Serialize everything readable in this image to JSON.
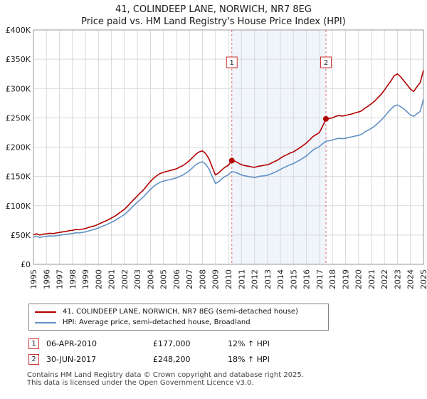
{
  "title": "41, COLINDEEP LANE, NORWICH, NR7 8EG",
  "subtitle": "Price paid vs. HM Land Registry's House Price Index (HPI)",
  "chart_data": {
    "type": "line",
    "xlabel": "",
    "ylabel": "",
    "xlim": [
      1995,
      2025
    ],
    "ylim": [
      0,
      400000
    ],
    "grid": true,
    "legend_position": "bottom",
    "x_ticks": [
      1995,
      1996,
      1997,
      1998,
      1999,
      2000,
      2001,
      2002,
      2003,
      2004,
      2005,
      2006,
      2007,
      2008,
      2009,
      2010,
      2011,
      2012,
      2013,
      2014,
      2015,
      2016,
      2017,
      2018,
      2019,
      2020,
      2021,
      2022,
      2023,
      2024,
      2025
    ],
    "y_ticks": [
      {
        "value": 0,
        "label": "£0"
      },
      {
        "value": 50000,
        "label": "£50K"
      },
      {
        "value": 100000,
        "label": "£100K"
      },
      {
        "value": 150000,
        "label": "£150K"
      },
      {
        "value": 200000,
        "label": "£200K"
      },
      {
        "value": 250000,
        "label": "£250K"
      },
      {
        "value": 300000,
        "label": "£300K"
      },
      {
        "value": 350000,
        "label": "£350K"
      },
      {
        "value": 400000,
        "label": "£400K"
      }
    ],
    "shaded_region": {
      "from": 2010.26,
      "to": 2017.5,
      "color": "#dde7f6",
      "opacity": 0.45,
      "boundary_color": "#e07070"
    },
    "sale_markers": [
      {
        "num": "1",
        "x": 2010.26,
        "y": 177000
      },
      {
        "num": "2",
        "x": 2017.5,
        "y": 248200
      }
    ],
    "series": [
      {
        "name": "41, COLINDEEP LANE, NORWICH, NR7 8EG (semi-detached house)",
        "color": "#b30000",
        "points": [
          [
            1995.0,
            50500
          ],
          [
            1995.25,
            52000
          ],
          [
            1995.5,
            50000
          ],
          [
            1995.75,
            51500
          ],
          [
            1996.0,
            52000
          ],
          [
            1996.25,
            53000
          ],
          [
            1996.5,
            52500
          ],
          [
            1996.75,
            53500
          ],
          [
            1997.0,
            54500
          ],
          [
            1997.25,
            55500
          ],
          [
            1997.5,
            56000
          ],
          [
            1997.75,
            57500
          ],
          [
            1998.0,
            58000
          ],
          [
            1998.25,
            59500
          ],
          [
            1998.5,
            59000
          ],
          [
            1998.75,
            60000
          ],
          [
            1999.0,
            61000
          ],
          [
            1999.25,
            63000
          ],
          [
            1999.5,
            64500
          ],
          [
            1999.75,
            66000
          ],
          [
            2000.0,
            68500
          ],
          [
            2000.25,
            71000
          ],
          [
            2000.5,
            73500
          ],
          [
            2000.75,
            76000
          ],
          [
            2001.0,
            79000
          ],
          [
            2001.25,
            82000
          ],
          [
            2001.5,
            86000
          ],
          [
            2001.75,
            90000
          ],
          [
            2002.0,
            94000
          ],
          [
            2002.25,
            99500
          ],
          [
            2002.5,
            105500
          ],
          [
            2002.75,
            111500
          ],
          [
            2003.0,
            117000
          ],
          [
            2003.25,
            122500
          ],
          [
            2003.5,
            128000
          ],
          [
            2003.75,
            135000
          ],
          [
            2004.0,
            141500
          ],
          [
            2004.25,
            147000
          ],
          [
            2004.5,
            151500
          ],
          [
            2004.75,
            155000
          ],
          [
            2005.0,
            157000
          ],
          [
            2005.25,
            158500
          ],
          [
            2005.5,
            160000
          ],
          [
            2005.75,
            161500
          ],
          [
            2006.0,
            163000
          ],
          [
            2006.25,
            166000
          ],
          [
            2006.5,
            168500
          ],
          [
            2006.75,
            172500
          ],
          [
            2007.0,
            177000
          ],
          [
            2007.25,
            182500
          ],
          [
            2007.5,
            188000
          ],
          [
            2007.75,
            192000
          ],
          [
            2008.0,
            193500
          ],
          [
            2008.25,
            189000
          ],
          [
            2008.5,
            180000
          ],
          [
            2008.75,
            166000
          ],
          [
            2009.0,
            152500
          ],
          [
            2009.25,
            156000
          ],
          [
            2009.5,
            161500
          ],
          [
            2009.75,
            166000
          ],
          [
            2010.0,
            169000
          ],
          [
            2010.26,
            177000
          ],
          [
            2010.5,
            176000
          ],
          [
            2010.75,
            173000
          ],
          [
            2011.0,
            170000
          ],
          [
            2011.25,
            168500
          ],
          [
            2011.5,
            167500
          ],
          [
            2011.75,
            166500
          ],
          [
            2012.0,
            165500
          ],
          [
            2012.25,
            167000
          ],
          [
            2012.5,
            168000
          ],
          [
            2012.75,
            169000
          ],
          [
            2013.0,
            170000
          ],
          [
            2013.25,
            172000
          ],
          [
            2013.5,
            175000
          ],
          [
            2013.75,
            177500
          ],
          [
            2014.0,
            181000
          ],
          [
            2014.25,
            184500
          ],
          [
            2014.5,
            187000
          ],
          [
            2014.75,
            190000
          ],
          [
            2015.0,
            192000
          ],
          [
            2015.25,
            195500
          ],
          [
            2015.5,
            199000
          ],
          [
            2015.75,
            203000
          ],
          [
            2016.0,
            207000
          ],
          [
            2016.25,
            212500
          ],
          [
            2016.5,
            218000
          ],
          [
            2016.75,
            221500
          ],
          [
            2017.0,
            225000
          ],
          [
            2017.25,
            236000
          ],
          [
            2017.5,
            248200
          ],
          [
            2017.75,
            249000
          ],
          [
            2018.0,
            250000
          ],
          [
            2018.25,
            252500
          ],
          [
            2018.5,
            254000
          ],
          [
            2018.75,
            253000
          ],
          [
            2019.0,
            254000
          ],
          [
            2019.25,
            255500
          ],
          [
            2019.5,
            256500
          ],
          [
            2019.75,
            258500
          ],
          [
            2020.0,
            260000
          ],
          [
            2020.25,
            262000
          ],
          [
            2020.5,
            266500
          ],
          [
            2020.75,
            270000
          ],
          [
            2021.0,
            274000
          ],
          [
            2021.25,
            278500
          ],
          [
            2021.5,
            284500
          ],
          [
            2021.75,
            290000
          ],
          [
            2022.0,
            297500
          ],
          [
            2022.25,
            305500
          ],
          [
            2022.5,
            313000
          ],
          [
            2022.75,
            322000
          ],
          [
            2023.0,
            325000
          ],
          [
            2023.25,
            320000
          ],
          [
            2023.5,
            313000
          ],
          [
            2023.75,
            306000
          ],
          [
            2024.0,
            299000
          ],
          [
            2024.25,
            295000
          ],
          [
            2024.5,
            303000
          ],
          [
            2024.75,
            310000
          ],
          [
            2025.0,
            331000
          ]
        ]
      },
      {
        "name": "HPI: Average price, semi-detached house, Broadland",
        "color": "#6090c5",
        "points": [
          [
            1995.0,
            46500
          ],
          [
            1995.25,
            47500
          ],
          [
            1995.5,
            46000
          ],
          [
            1995.75,
            47000
          ],
          [
            1996.0,
            47500
          ],
          [
            1996.25,
            48500
          ],
          [
            1996.5,
            48000
          ],
          [
            1996.75,
            49000
          ],
          [
            1997.0,
            49500
          ],
          [
            1997.25,
            50500
          ],
          [
            1997.5,
            51000
          ],
          [
            1997.75,
            52000
          ],
          [
            1998.0,
            52500
          ],
          [
            1998.25,
            54000
          ],
          [
            1998.5,
            53500
          ],
          [
            1998.75,
            54500
          ],
          [
            1999.0,
            55500
          ],
          [
            1999.25,
            57000
          ],
          [
            1999.5,
            58500
          ],
          [
            1999.75,
            60000
          ],
          [
            2000.0,
            62000
          ],
          [
            2000.25,
            64500
          ],
          [
            2000.5,
            66500
          ],
          [
            2000.75,
            69000
          ],
          [
            2001.0,
            71500
          ],
          [
            2001.25,
            74500
          ],
          [
            2001.5,
            78000
          ],
          [
            2001.75,
            81500
          ],
          [
            2002.0,
            85000
          ],
          [
            2002.25,
            90000
          ],
          [
            2002.5,
            95500
          ],
          [
            2002.75,
            101000
          ],
          [
            2003.0,
            106000
          ],
          [
            2003.25,
            111000
          ],
          [
            2003.5,
            116000
          ],
          [
            2003.75,
            122000
          ],
          [
            2004.0,
            128000
          ],
          [
            2004.25,
            133000
          ],
          [
            2004.5,
            137000
          ],
          [
            2004.75,
            140000
          ],
          [
            2005.0,
            142000
          ],
          [
            2005.25,
            143500
          ],
          [
            2005.5,
            144500
          ],
          [
            2005.75,
            146000
          ],
          [
            2006.0,
            147500
          ],
          [
            2006.25,
            150000
          ],
          [
            2006.5,
            152500
          ],
          [
            2006.75,
            156000
          ],
          [
            2007.0,
            160000
          ],
          [
            2007.25,
            165000
          ],
          [
            2007.5,
            170000
          ],
          [
            2007.75,
            173500
          ],
          [
            2008.0,
            175000
          ],
          [
            2008.25,
            171000
          ],
          [
            2008.5,
            163000
          ],
          [
            2008.75,
            150000
          ],
          [
            2009.0,
            138000
          ],
          [
            2009.25,
            141000
          ],
          [
            2009.5,
            146000
          ],
          [
            2009.75,
            150000
          ],
          [
            2010.0,
            153000
          ],
          [
            2010.26,
            158000
          ],
          [
            2010.5,
            157500
          ],
          [
            2010.75,
            155000
          ],
          [
            2011.0,
            152500
          ],
          [
            2011.25,
            151000
          ],
          [
            2011.5,
            150000
          ],
          [
            2011.75,
            149000
          ],
          [
            2012.0,
            148000
          ],
          [
            2012.25,
            149500
          ],
          [
            2012.5,
            150500
          ],
          [
            2012.75,
            151000
          ],
          [
            2013.0,
            152000
          ],
          [
            2013.25,
            154000
          ],
          [
            2013.5,
            156500
          ],
          [
            2013.75,
            159000
          ],
          [
            2014.0,
            162000
          ],
          [
            2014.25,
            165000
          ],
          [
            2014.5,
            167500
          ],
          [
            2014.75,
            170000
          ],
          [
            2015.0,
            172000
          ],
          [
            2015.25,
            175000
          ],
          [
            2015.5,
            178000
          ],
          [
            2015.75,
            181500
          ],
          [
            2016.0,
            185000
          ],
          [
            2016.25,
            190000
          ],
          [
            2016.5,
            195000
          ],
          [
            2016.75,
            198000
          ],
          [
            2017.0,
            201000
          ],
          [
            2017.25,
            206000
          ],
          [
            2017.5,
            210300
          ],
          [
            2017.75,
            211000
          ],
          [
            2018.0,
            212000
          ],
          [
            2018.25,
            214000
          ],
          [
            2018.5,
            215000
          ],
          [
            2018.75,
            214500
          ],
          [
            2019.0,
            215000
          ],
          [
            2019.25,
            216500
          ],
          [
            2019.5,
            217500
          ],
          [
            2019.75,
            219000
          ],
          [
            2020.0,
            220000
          ],
          [
            2020.25,
            222000
          ],
          [
            2020.5,
            226000
          ],
          [
            2020.75,
            229000
          ],
          [
            2021.0,
            232000
          ],
          [
            2021.25,
            236000
          ],
          [
            2021.5,
            241000
          ],
          [
            2021.75,
            246000
          ],
          [
            2022.0,
            252000
          ],
          [
            2022.25,
            259000
          ],
          [
            2022.5,
            265000
          ],
          [
            2022.75,
            270000
          ],
          [
            2023.0,
            272000
          ],
          [
            2023.25,
            269000
          ],
          [
            2023.5,
            265000
          ],
          [
            2023.75,
            260000
          ],
          [
            2024.0,
            255000
          ],
          [
            2024.25,
            252500
          ],
          [
            2024.5,
            257000
          ],
          [
            2024.75,
            261000
          ],
          [
            2025.0,
            282000
          ]
        ]
      }
    ]
  },
  "transactions": [
    {
      "num": "1",
      "date": "06-APR-2010",
      "price": "£177,000",
      "hpi": "12% ↑ HPI"
    },
    {
      "num": "2",
      "date": "30-JUN-2017",
      "price": "£248,200",
      "hpi": "18% ↑ HPI"
    }
  ],
  "footer": {
    "line1": "Contains HM Land Registry data © Crown copyright and database right 2025.",
    "line2": "This data is licensed under the Open Government Licence v3.0."
  },
  "colors": {
    "grid": "#d9d9d9",
    "frame": "#999999",
    "marker_box_border": "#cc3333",
    "tick_text": "#222222"
  }
}
